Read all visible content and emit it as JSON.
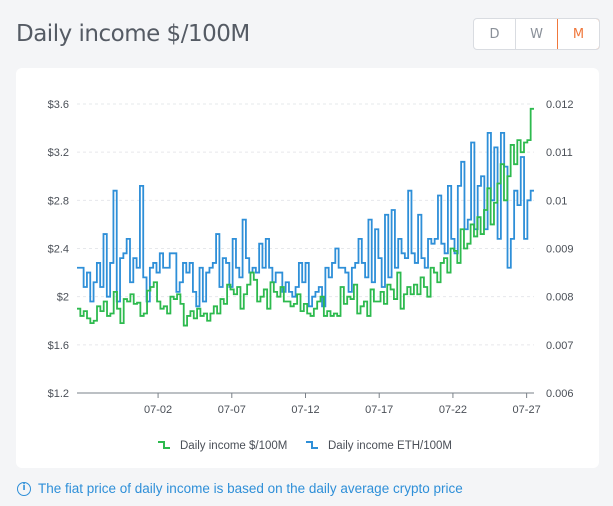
{
  "header": {
    "title": "Daily income $/100M"
  },
  "range_selector": {
    "options": [
      {
        "label": "D",
        "active": false
      },
      {
        "label": "W",
        "active": false
      },
      {
        "label": "M",
        "active": true
      }
    ]
  },
  "note": {
    "icon": "info-icon",
    "text": "The fiat price of daily income is based on the daily average crypto price"
  },
  "colors": {
    "usd_series": "#2dba4e",
    "eth_series": "#2e8fd8",
    "accent": "#f0783c"
  },
  "chart_data": {
    "type": "line",
    "step": true,
    "title": "",
    "x_tick_labels": [
      "07-02",
      "07-07",
      "07-12",
      "07-17",
      "07-22",
      "07-27"
    ],
    "x_tick_day_index": [
      6,
      11,
      16,
      21,
      26,
      31
    ],
    "x_range": [
      0.5,
      31.5
    ],
    "y_left": {
      "label": "",
      "range": [
        1.2,
        3.6
      ],
      "ticks": [
        1.2,
        1.6,
        2.0,
        2.4,
        2.8,
        3.2,
        3.6
      ],
      "tick_labels": [
        "$1.2",
        "$1.6",
        "$2",
        "$2.4",
        "$2.8",
        "$3.2",
        "$3.6"
      ]
    },
    "y_right": {
      "label": "",
      "range": [
        0.006,
        0.012
      ],
      "ticks": [
        0.006,
        0.007,
        0.008,
        0.009,
        0.01,
        0.011,
        0.012
      ],
      "tick_labels": [
        "0.006",
        "0.007",
        "0.008",
        "0.009",
        "0.01",
        "0.011",
        "0.012"
      ]
    },
    "grid": true,
    "legend_position": "bottom",
    "series": [
      {
        "name": "Daily income $/100M",
        "axis": "left",
        "values": [
          1.9,
          1.84,
          1.88,
          1.82,
          1.78,
          1.8,
          1.92,
          1.88,
          1.96,
          1.84,
          1.86,
          2.04,
          1.9,
          1.78,
          1.98,
          1.96,
          2.02,
          1.94,
          1.95,
          1.84,
          1.86,
          2.05,
          2.08,
          2.12,
          1.96,
          1.9,
          1.92,
          1.86,
          2.0,
          1.98,
          2.02,
          1.94,
          1.76,
          1.84,
          1.88,
          1.82,
          1.9,
          1.84,
          1.86,
          1.8,
          1.86,
          1.92,
          1.86,
          1.98,
          1.94,
          2.1,
          2.06,
          2.02,
          2.08,
          1.9,
          2.02,
          2.1,
          2.2,
          2.14,
          1.96,
          2.0,
          2.06,
          1.9,
          2.12,
          2.04,
          2.0,
          2.08,
          1.96,
          1.96,
          1.92,
          1.94,
          2.02,
          1.88,
          1.94,
          1.86,
          1.84,
          1.9,
          1.96,
          2.0,
          1.84,
          1.88,
          1.84,
          1.86,
          1.84,
          2.08,
          1.94,
          2.0,
          1.98,
          2.1,
          1.86,
          1.92,
          1.96,
          1.84,
          2.06,
          1.96,
          1.96,
          2.04,
          1.94,
          2.1,
          2.06,
          1.98,
          2.2,
          1.9,
          2.02,
          2.08,
          2.02,
          2.1,
          2.02,
          2.16,
          2.08,
          2.0,
          2.24,
          2.2,
          2.12,
          2.28,
          2.32,
          2.2,
          2.4,
          2.38,
          2.28,
          2.56,
          2.4,
          2.44,
          2.6,
          2.5,
          2.66,
          2.52,
          2.72,
          2.9,
          2.6,
          2.78,
          2.94,
          3.1,
          2.8,
          3.0,
          3.26,
          3.1,
          3.3,
          3.2,
          3.28,
          3.3,
          3.56
        ]
      },
      {
        "name": "Daily income ETH/100M",
        "axis": "right",
        "values": [
          0.0086,
          0.0086,
          0.0082,
          0.0085,
          0.0079,
          0.0083,
          0.0087,
          0.0082,
          0.0093,
          0.008,
          0.0087,
          0.0102,
          0.0079,
          0.0088,
          0.0089,
          0.0092,
          0.0083,
          0.0088,
          0.0086,
          0.0103,
          0.0084,
          0.0079,
          0.0086,
          0.0087,
          0.0085,
          0.0089,
          0.0086,
          0.0086,
          0.0089,
          0.0089,
          0.0081,
          0.0083,
          0.0087,
          0.0085,
          0.0087,
          0.0081,
          0.0078,
          0.0086,
          0.0079,
          0.0085,
          0.0086,
          0.0087,
          0.0093,
          0.0082,
          0.0088,
          0.0087,
          0.0082,
          0.0092,
          0.0086,
          0.0084,
          0.0096,
          0.0088,
          0.0085,
          0.0086,
          0.0085,
          0.0091,
          0.0086,
          0.0092,
          0.0086,
          0.0083,
          0.0085,
          0.0085,
          0.0081,
          0.0083,
          0.0081,
          0.008,
          0.0082,
          0.0087,
          0.0083,
          0.0087,
          0.0078,
          0.008,
          0.0081,
          0.0082,
          0.0078,
          0.0086,
          0.0084,
          0.0087,
          0.009,
          0.0086,
          0.0086,
          0.0085,
          0.0081,
          0.0086,
          0.0087,
          0.0092,
          0.0087,
          0.0084,
          0.0096,
          0.0083,
          0.0094,
          0.0088,
          0.0082,
          0.0097,
          0.0084,
          0.0098,
          0.0086,
          0.0092,
          0.0089,
          0.0088,
          0.0102,
          0.0089,
          0.0087,
          0.0097,
          0.0088,
          0.0086,
          0.0092,
          0.0091,
          0.0092,
          0.0101,
          0.0091,
          0.0089,
          0.0103,
          0.0092,
          0.0089,
          0.0103,
          0.0108,
          0.0094,
          0.0096,
          0.0112,
          0.0094,
          0.0103,
          0.0105,
          0.0094,
          0.0114,
          0.01,
          0.0111,
          0.0092,
          0.0114,
          0.0107,
          0.0086,
          0.0092,
          0.0102,
          0.0099,
          0.0109,
          0.0092,
          0.01,
          0.0102
        ]
      }
    ]
  }
}
